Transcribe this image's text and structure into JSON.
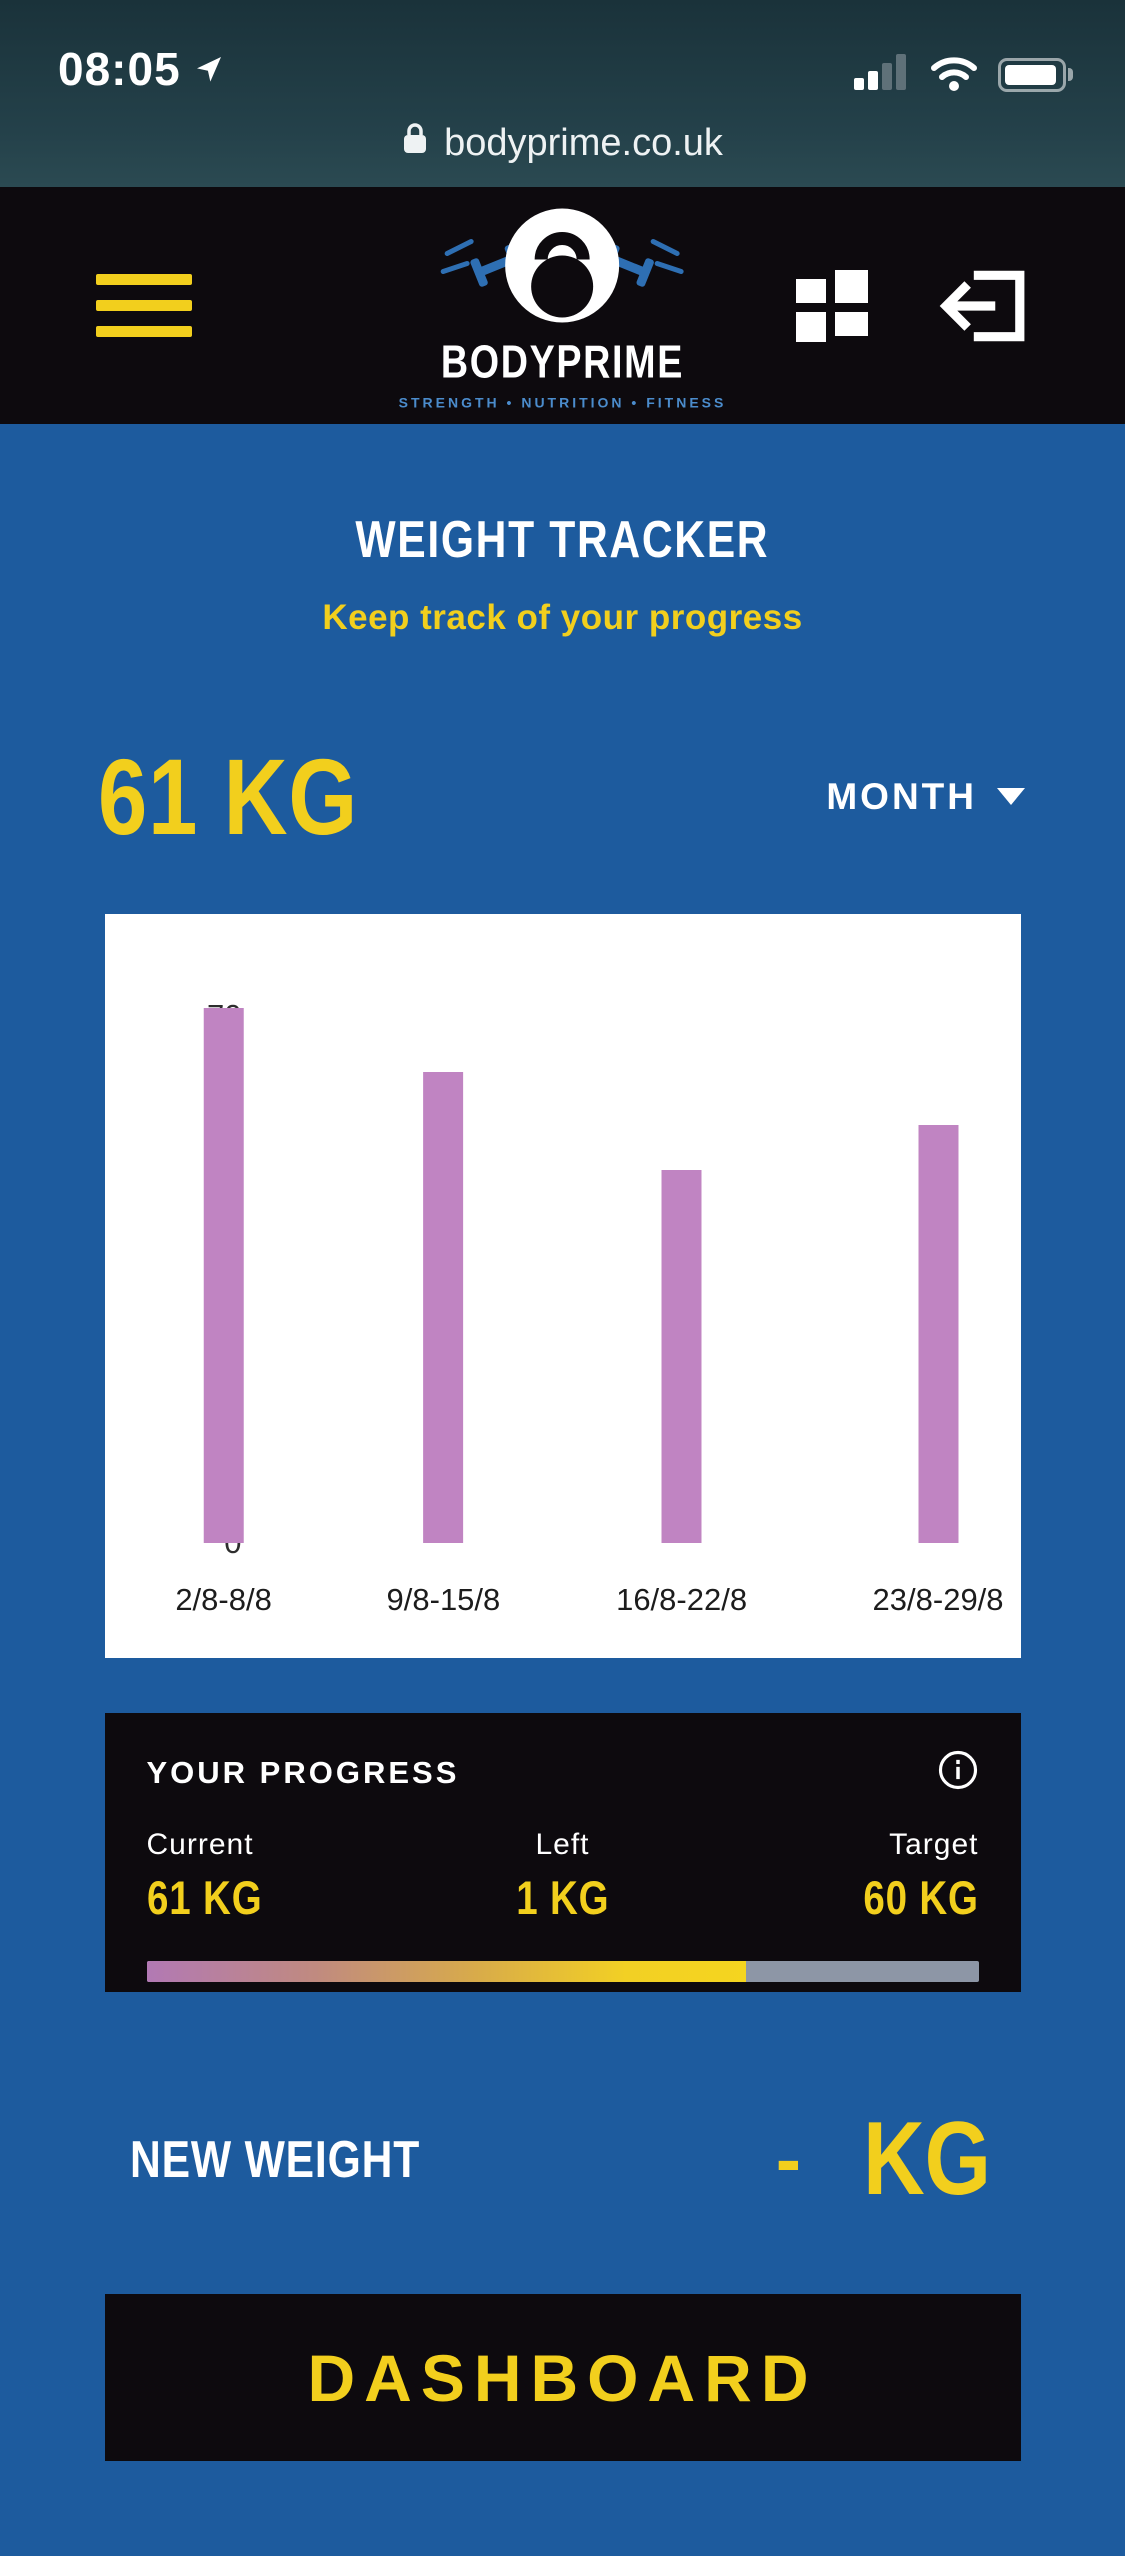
{
  "colors": {
    "bg-blue": "#1d5b9e",
    "card-black": "#0d0a0e",
    "yellow": "#f2cf1d",
    "bar-purple": "#c084c2",
    "track-gray": "#8d96a6"
  },
  "status_bar": {
    "time": "08:05",
    "url": "bodyprime.co.uk"
  },
  "header": {
    "logo_title": "BODYPRIME",
    "logo_tagline": "STRENGTH • NUTRITION • FITNESS"
  },
  "tracker": {
    "title": "WEIGHT TRACKER",
    "subtitle": "Keep track of your progress",
    "current_weight": "61 KG",
    "period_label": "MONTH"
  },
  "chart_data": {
    "type": "bar",
    "categories": [
      "2/8-8/8",
      "9/8-15/8",
      "16/8-22/8",
      "23/8-29/8"
    ],
    "values": [
      71,
      62.5,
      49.5,
      55.5
    ],
    "title": "",
    "xlabel": "",
    "ylabel": "",
    "ylim": [
      0,
      75
    ],
    "yticks": [
      0,
      10,
      20,
      30,
      40,
      50,
      60,
      70
    ],
    "bar_color": "#c084c2",
    "grid": false,
    "legend": false
  },
  "progress": {
    "title": "YOUR PROGRESS",
    "current_label": "Current",
    "current_value": "61 KG",
    "left_label": "Left",
    "left_value": "1 KG",
    "target_label": "Target",
    "target_value": "60 KG",
    "fill_percent": 72
  },
  "new_weight": {
    "label": "NEW WEIGHT",
    "value": "-",
    "unit": "KG"
  },
  "dashboard_button": "DASHBOARD"
}
